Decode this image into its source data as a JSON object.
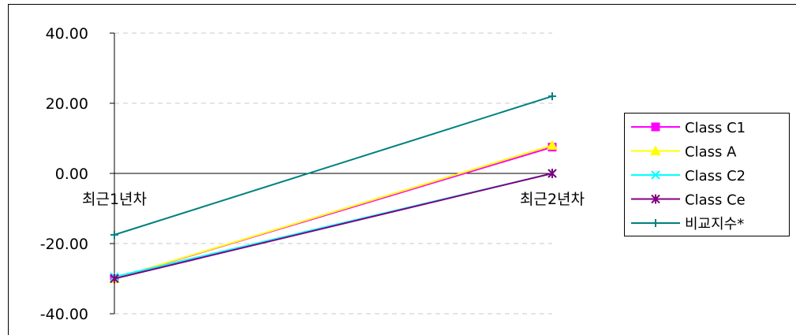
{
  "chart_data": {
    "type": "line",
    "categories": [
      "최근1년차",
      "최근2년차"
    ],
    "ylim": [
      -40,
      40
    ],
    "yticks": [
      "40.00",
      "20.00",
      "0.00",
      "-20.00",
      "-40.00"
    ],
    "ytick_values": [
      40,
      20,
      0,
      -20,
      -40
    ],
    "grid": true,
    "legend_position": "right",
    "series": [
      {
        "name": "Class C1",
        "values": [
          -30,
          7.5
        ],
        "color": "#FF00FF",
        "marker": "square"
      },
      {
        "name": "Class A",
        "values": [
          -30,
          8
        ],
        "color": "#FFFF00",
        "marker": "triangle"
      },
      {
        "name": "Class C2",
        "values": [
          -29.5,
          0
        ],
        "color": "#00FFFF",
        "marker": "x"
      },
      {
        "name": "Class Ce",
        "values": [
          -30,
          0
        ],
        "color": "#800080",
        "marker": "asterisk"
      },
      {
        "name": "비교지수*",
        "values": [
          -17.5,
          22
        ],
        "color": "#008080",
        "marker": "plus"
      }
    ]
  }
}
